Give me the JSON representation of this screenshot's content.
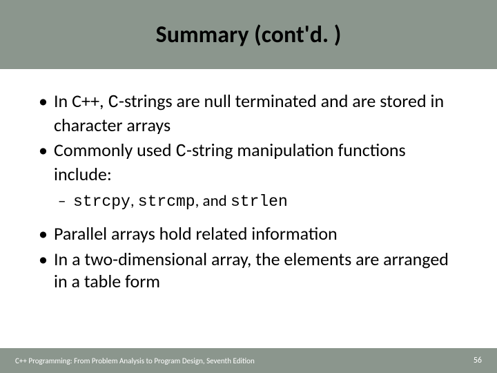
{
  "colors": {
    "header_bg": "#8b968d",
    "footer_bg": "#8b968d",
    "body_bg": "#ffffff",
    "title_color": "#000000",
    "text_color": "#000000",
    "footer_text_color": "#ffffff"
  },
  "typography": {
    "title_fontsize": 34,
    "title_weight": "bold",
    "bullet_fontsize": 26,
    "sub_bullet_fontsize": 23,
    "footer_fontsize": 11,
    "mono_family": "Courier New"
  },
  "title": "Summary (cont'd. )",
  "bullets": {
    "b1_pre": "In C++, ",
    "b1_mono": "C",
    "b1_post": "-strings are null terminated and are stored in character arrays",
    "b2_pre": "Commonly used ",
    "b2_mono": "C",
    "b2_post": "-string manipulation functions include:",
    "sub_s1": "strcpy",
    "sub_c1": ", ",
    "sub_s2": "strcmp",
    "sub_c2": ", and ",
    "sub_s3": "strlen",
    "b3": "Parallel arrays hold related information",
    "b4": "In a two-dimensional array, the elements are arranged in a table form"
  },
  "footer": {
    "text": "C++ Programming: From Problem Analysis to Program Design, Seventh Edition",
    "page": "56"
  }
}
